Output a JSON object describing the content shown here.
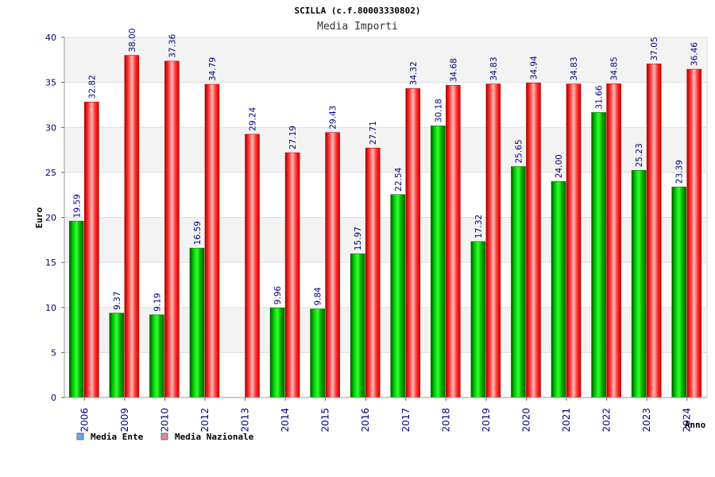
{
  "chart_data": {
    "type": "bar",
    "title": "SCILLA (c.f.80003330802)",
    "subtitle": "Media Importi",
    "xlabel": "Anno",
    "ylabel": "Euro",
    "ylim": [
      0,
      40
    ],
    "yticks": [
      0,
      5,
      10,
      15,
      20,
      25,
      30,
      35,
      40
    ],
    "grid": true,
    "legend_position": "bottom-left",
    "categories": [
      "2006",
      "2009",
      "2010",
      "2012",
      "2013",
      "2014",
      "2015",
      "2016",
      "2017",
      "2018",
      "2019",
      "2020",
      "2021",
      "2022",
      "2023",
      "2024"
    ],
    "series": [
      {
        "name": "Media Ente",
        "color": "#00aa00",
        "legend_color": "#66aaee",
        "values": [
          19.59,
          9.37,
          9.19,
          16.59,
          null,
          9.96,
          9.84,
          15.97,
          22.54,
          30.18,
          17.32,
          25.65,
          24.0,
          31.66,
          25.23,
          23.39
        ],
        "labels": [
          "19.59",
          "9.37",
          "9.19",
          "16.59",
          "",
          "9.96",
          "9.84",
          "15.97",
          "22.54",
          "30.18",
          "17.32",
          "25.65",
          "24.00",
          "31.66",
          "25.23",
          "23.39"
        ]
      },
      {
        "name": "Media Nazionale",
        "color": "#ee1111",
        "legend_color": "#dd88aa",
        "values": [
          32.82,
          38.0,
          37.36,
          34.79,
          29.24,
          27.19,
          29.43,
          27.71,
          34.32,
          34.68,
          34.83,
          34.94,
          34.83,
          34.85,
          37.05,
          36.46
        ],
        "labels": [
          "32.82",
          "38.00",
          "37.36",
          "34.79",
          "29.24",
          "27.19",
          "29.43",
          "27.71",
          "34.32",
          "34.68",
          "34.83",
          "34.94",
          "34.83",
          "34.85",
          "37.05",
          "36.46"
        ]
      }
    ]
  }
}
